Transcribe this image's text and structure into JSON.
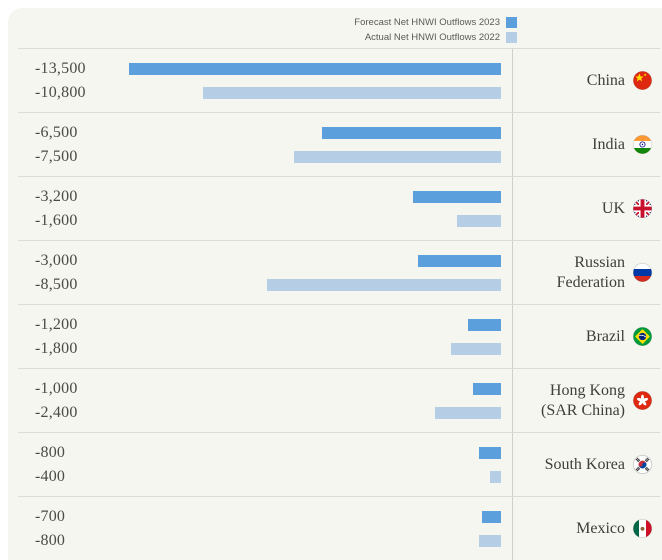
{
  "legend": {
    "items": [
      {
        "label": "Forecast Net HNWI Outflows 2023",
        "color": "#5ba0dc"
      },
      {
        "label": "Actual Net HNWI Outflows 2022",
        "color": "#b6cee5"
      }
    ]
  },
  "colors": {
    "forecast": "#5ba0dc",
    "actual": "#b6cee5"
  },
  "chart_data": {
    "type": "bar",
    "orientation": "horizontal",
    "title": "",
    "categories": [
      "China",
      "India",
      "UK",
      "Russian Federation",
      "Brazil",
      "Hong Kong (SAR China)",
      "South Korea",
      "Mexico"
    ],
    "series": [
      {
        "name": "Forecast Net HNWI Outflows 2023",
        "color": "#5ba0dc",
        "values": [
          -13500,
          -6500,
          -3200,
          -3000,
          -1200,
          -1000,
          -800,
          -700
        ]
      },
      {
        "name": "Actual Net HNWI Outflows 2022",
        "color": "#b6cee5",
        "values": [
          -10800,
          -7500,
          -1600,
          -8500,
          -1800,
          -2400,
          -400,
          -800
        ]
      }
    ],
    "value_axis_max_abs": 13500,
    "bars_show_absolute_value": true,
    "bars_right_aligned": true,
    "grid": "row-separators-only",
    "legend_position": "top-right"
  },
  "rows": [
    {
      "country": "China",
      "flag": "china-flag-icon",
      "forecast_label": "-13,500",
      "actual_label": "-10,800",
      "forecast_value": -13500,
      "actual_value": -10800
    },
    {
      "country": "India",
      "flag": "india-flag-icon",
      "forecast_label": "-6,500",
      "actual_label": "-7,500",
      "forecast_value": -6500,
      "actual_value": -7500
    },
    {
      "country": "UK",
      "flag": "uk-flag-icon",
      "forecast_label": "-3,200",
      "actual_label": "-1,600",
      "forecast_value": -3200,
      "actual_value": -1600
    },
    {
      "country": "Russian Federation",
      "flag": "russia-flag-icon",
      "forecast_label": "-3,000",
      "actual_label": "-8,500",
      "forecast_value": -3000,
      "actual_value": -8500
    },
    {
      "country": "Brazil",
      "flag": "brazil-flag-icon",
      "forecast_label": "-1,200",
      "actual_label": "-1,800",
      "forecast_value": -1200,
      "actual_value": -1800
    },
    {
      "country": "Hong Kong (SAR China)",
      "flag": "hong-kong-flag-icon",
      "forecast_label": "-1,000",
      "actual_label": "-2,400",
      "forecast_value": -1000,
      "actual_value": -2400
    },
    {
      "country": "South Korea",
      "flag": "south-korea-flag-icon",
      "forecast_label": "-800",
      "actual_label": "-400",
      "forecast_value": -800,
      "actual_value": -400
    },
    {
      "country": "Mexico",
      "flag": "mexico-flag-icon",
      "forecast_label": "-700",
      "actual_label": "-800",
      "forecast_value": -700,
      "actual_value": -800
    }
  ]
}
